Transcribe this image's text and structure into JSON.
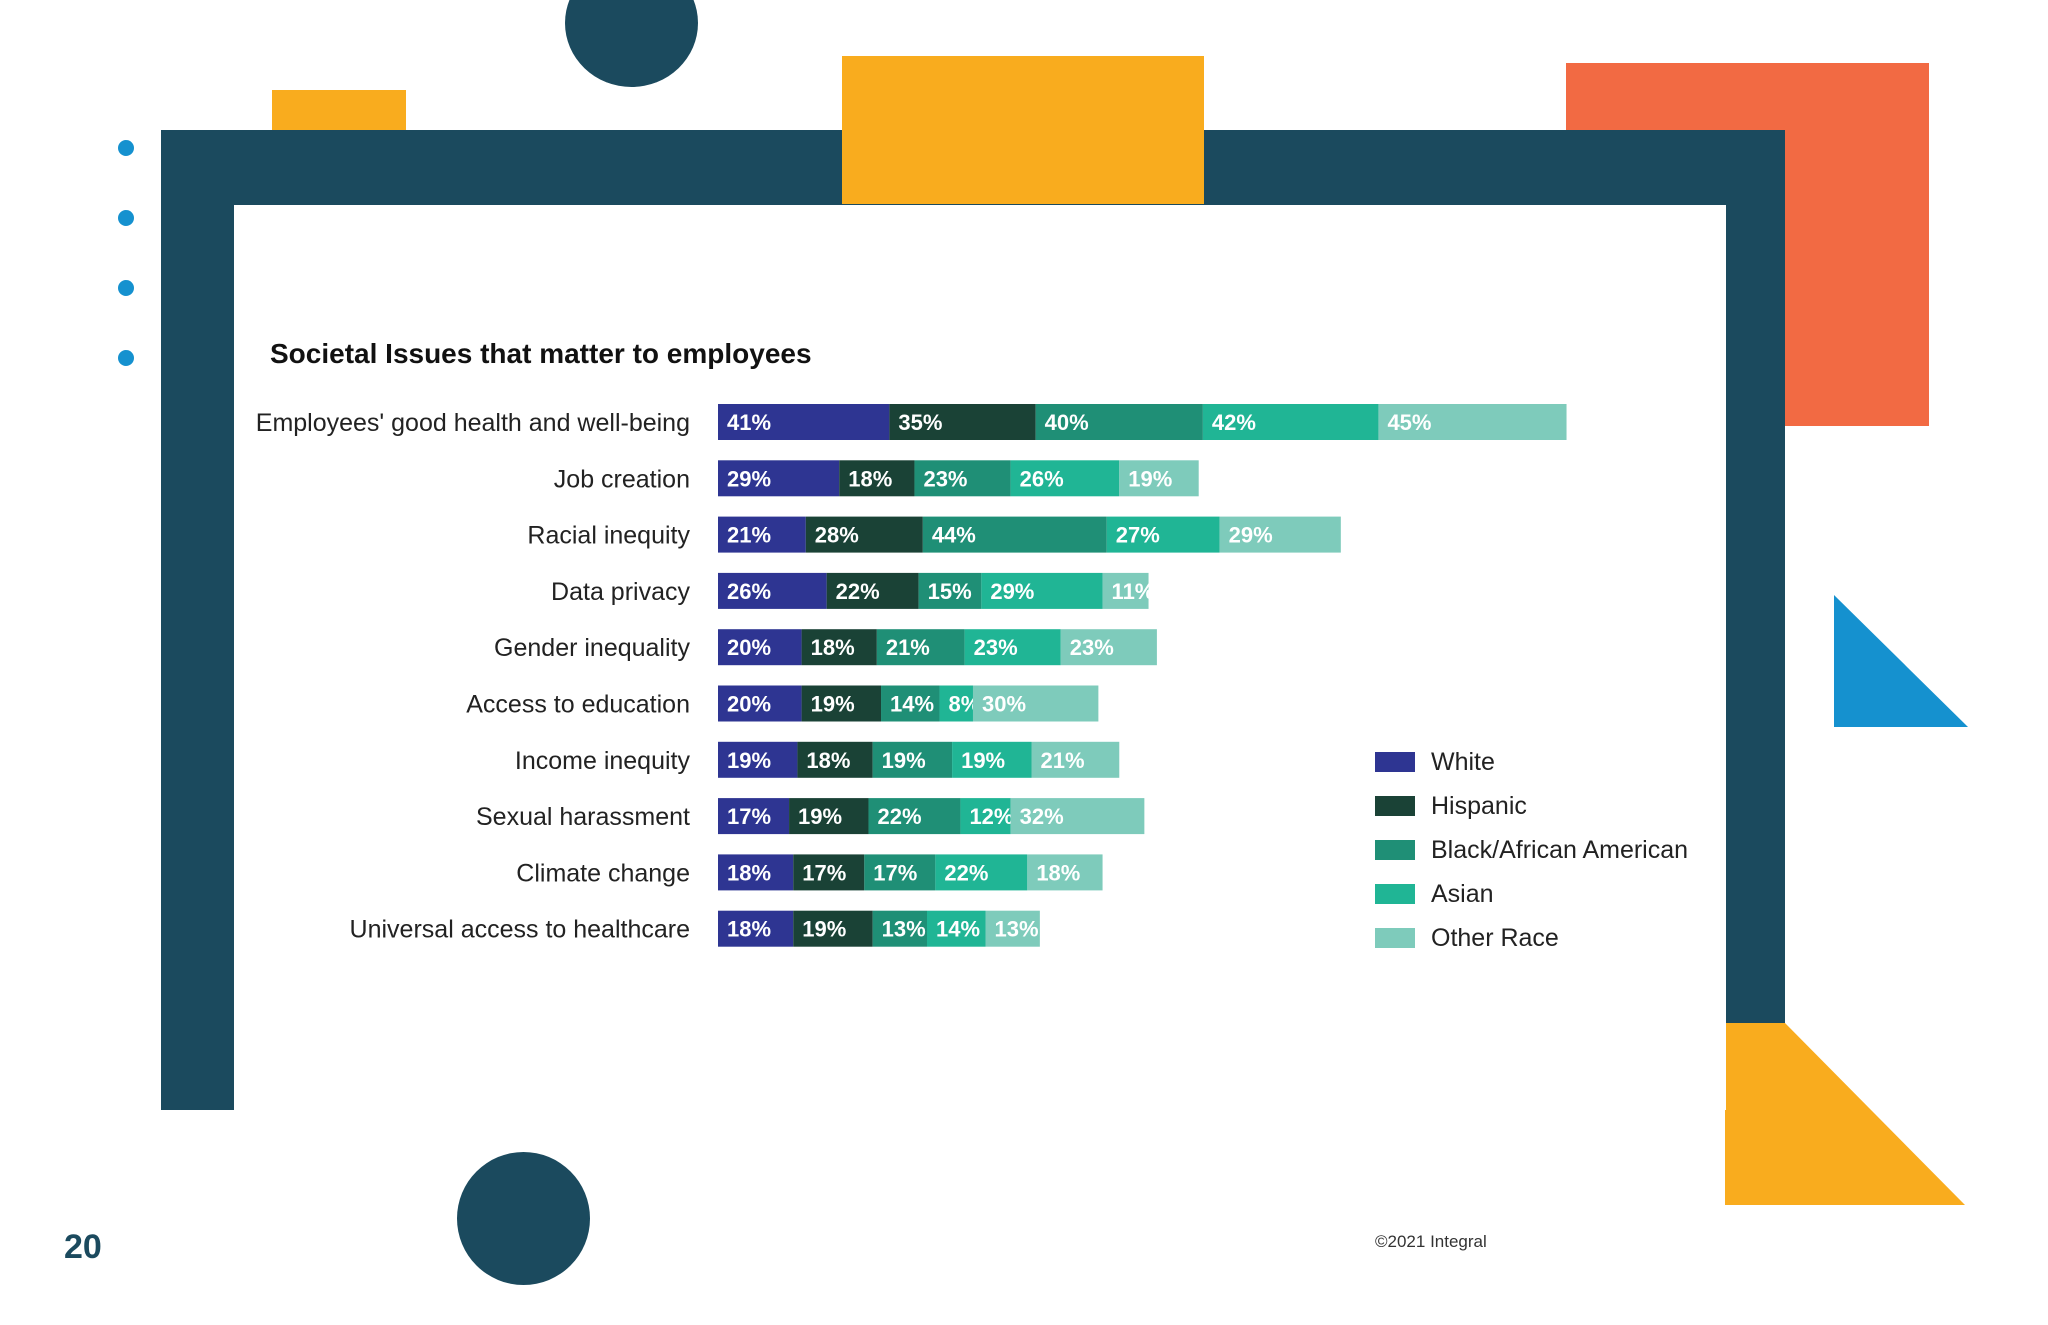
{
  "page_number": "20",
  "copyright": "©2021 Integral",
  "colors": {
    "frame": "#1b4a5e",
    "yellow": "#f9ac1e",
    "orange": "#f26a43",
    "blue": "#1591cf"
  },
  "chart_data": {
    "type": "bar",
    "orientation": "horizontal",
    "stacked": true,
    "title": "Societal Issues that matter to employees",
    "xlabel": "",
    "ylabel": "",
    "legend_position": "right",
    "categories": [
      "Employees' good health and well-being",
      "Job creation",
      "Racial inequity",
      "Data privacy",
      "Gender inequality",
      "Access to education",
      "Income inequity",
      "Sexual harassment",
      "Climate change",
      "Universal access to healthcare"
    ],
    "series": [
      {
        "name": "White",
        "color": "#2e3592",
        "values": [
          41,
          29,
          21,
          26,
          20,
          20,
          19,
          17,
          18,
          18
        ]
      },
      {
        "name": "Hispanic",
        "color": "#1a4236",
        "values": [
          35,
          18,
          28,
          22,
          18,
          19,
          18,
          19,
          17,
          19
        ]
      },
      {
        "name": "Black/African American",
        "color": "#1f8f76",
        "values": [
          40,
          23,
          44,
          15,
          21,
          14,
          19,
          22,
          17,
          13
        ]
      },
      {
        "name": "Asian",
        "color": "#20b595",
        "values": [
          42,
          26,
          27,
          29,
          23,
          8,
          19,
          12,
          22,
          14
        ]
      },
      {
        "name": "Other Race",
        "color": "#7ecbbb",
        "values": [
          45,
          19,
          29,
          11,
          23,
          30,
          21,
          32,
          18,
          13
        ]
      }
    ]
  }
}
